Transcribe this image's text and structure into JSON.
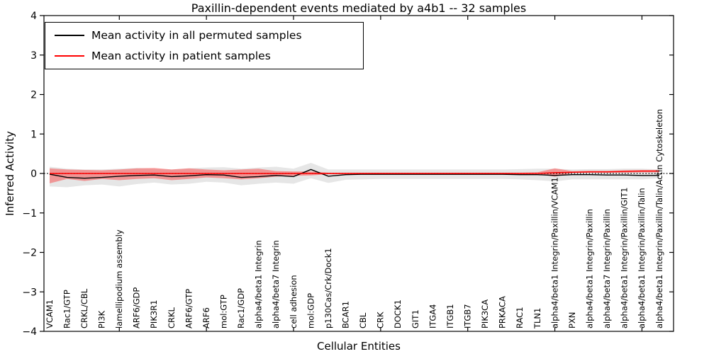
{
  "chart_data": {
    "type": "line",
    "title": "Paxillin-dependent events mediated by a4b1 -- 32 samples",
    "xlabel": "Cellular Entities",
    "ylabel": "Inferred Activity",
    "ylim": [
      -4,
      4
    ],
    "yticks": [
      4,
      3,
      2,
      1,
      0,
      -1,
      -2,
      -3,
      -4
    ],
    "ytick_labels": [
      "4",
      "3",
      "2",
      "1",
      "0",
      "−1",
      "−2",
      "−3",
      "−4"
    ],
    "grid": false,
    "legend_position": "upper left",
    "zero_line": {
      "y": 0,
      "style": "dotted",
      "color": "#000000"
    },
    "categories": [
      "VCAM1",
      "Rac1/GTP",
      "CRKL/CBL",
      "PI3K",
      "lamellipodium assembly",
      "ARF6/GDP",
      "PIK3R1",
      "CRKL",
      "ARF6/GTP",
      "ARF6",
      "mol:GTP",
      "Rac1/GDP",
      "alpha4/beta1 Integrin",
      "alpha4/beta7 Integrin",
      "cell adhesion",
      "mol:GDP",
      "p130Cas/Crk/Dock1",
      "BCAR1",
      "CBL",
      "CRK",
      "DOCK1",
      "GIT1",
      "ITGA4",
      "ITGB1",
      "ITGB7",
      "PIK3CA",
      "PRKACA",
      "RAC1",
      "TLN1",
      "alpha4/beta1 Integrin/Paxillin/VCAM1",
      "PXN",
      "alpha4/beta1 Integrin/Paxillin",
      "alpha4/beta7 Integrin/Paxillin",
      "alpha4/beta1 Integrin/Paxillin/GIT1",
      "alpha4/beta1 Integrin/Paxillin/Talin",
      "alpha4/beta1 Integrin/Paxillin/Talin/Actin Cytoskeleton"
    ],
    "series": [
      {
        "name": "Mean activity in all permuted samples",
        "color": "#000000",
        "band_color": "#c8c8c8",
        "band_opacity": 0.45,
        "values": [
          -0.02,
          -0.1,
          -0.12,
          -0.1,
          -0.07,
          -0.05,
          -0.04,
          -0.08,
          -0.06,
          -0.03,
          -0.04,
          -0.1,
          -0.08,
          -0.05,
          -0.08,
          0.1,
          -0.07,
          -0.03,
          -0.02,
          -0.02,
          -0.02,
          -0.02,
          -0.02,
          -0.02,
          -0.02,
          -0.02,
          -0.02,
          -0.03,
          -0.03,
          -0.05,
          -0.03,
          -0.03,
          -0.04,
          -0.04,
          -0.05,
          -0.05
        ],
        "band_upper": [
          0.17,
          0.12,
          0.1,
          0.1,
          0.12,
          0.14,
          0.12,
          0.1,
          0.13,
          0.15,
          0.16,
          0.12,
          0.15,
          0.17,
          0.12,
          0.27,
          0.1,
          0.1,
          0.1,
          0.1,
          0.1,
          0.1,
          0.1,
          0.1,
          0.1,
          0.1,
          0.1,
          0.11,
          0.12,
          0.12,
          0.1,
          0.11,
          0.11,
          0.12,
          0.12,
          0.1
        ],
        "band_lower": [
          -0.33,
          -0.35,
          -0.3,
          -0.28,
          -0.33,
          -0.27,
          -0.23,
          -0.28,
          -0.26,
          -0.21,
          -0.23,
          -0.3,
          -0.26,
          -0.23,
          -0.26,
          -0.12,
          -0.24,
          -0.16,
          -0.15,
          -0.14,
          -0.14,
          -0.14,
          -0.14,
          -0.14,
          -0.14,
          -0.14,
          -0.14,
          -0.15,
          -0.17,
          -0.2,
          -0.15,
          -0.15,
          -0.15,
          -0.15,
          -0.15,
          -0.12
        ]
      },
      {
        "name": "Mean activity in patient samples",
        "color": "#ff0000",
        "band_color": "#ff0000",
        "band_opacity": 0.35,
        "values": [
          0,
          0,
          0,
          0,
          0,
          0,
          0,
          0,
          0,
          0,
          0,
          0,
          0,
          0,
          0,
          0,
          0,
          0,
          0,
          0,
          0,
          0,
          0,
          0,
          0,
          0,
          0,
          0,
          0,
          0.02,
          0.03,
          0.04,
          0.04,
          0.05,
          0.06,
          0.06
        ],
        "band_upper": [
          0.13,
          0.1,
          0.09,
          0.08,
          0.1,
          0.13,
          0.14,
          0.1,
          0.13,
          0.1,
          0.08,
          0.1,
          0.12,
          0.06,
          0.05,
          0.05,
          0.02,
          0.02,
          0.02,
          0.02,
          0.02,
          0.02,
          0.02,
          0.02,
          0.02,
          0.02,
          0.02,
          0.02,
          0.03,
          0.13,
          0.06,
          0.07,
          0.07,
          0.08,
          0.09,
          0.09
        ],
        "band_lower": [
          -0.25,
          -0.14,
          -0.19,
          -0.14,
          -0.17,
          -0.14,
          -0.12,
          -0.17,
          -0.14,
          -0.1,
          -0.12,
          -0.15,
          -0.12,
          -0.08,
          -0.06,
          -0.05,
          -0.02,
          -0.02,
          -0.02,
          -0.02,
          -0.02,
          -0.02,
          -0.02,
          -0.02,
          -0.02,
          -0.02,
          -0.02,
          -0.02,
          -0.01,
          -0.08,
          0.01,
          0.02,
          0.02,
          0.02,
          0.03,
          0.03
        ]
      }
    ]
  }
}
